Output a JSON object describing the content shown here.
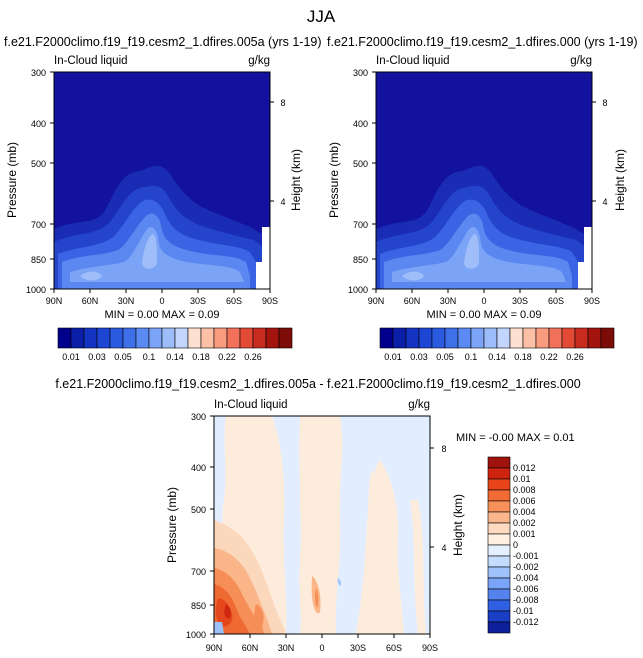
{
  "page_title": "JJA",
  "chart_data": [
    {
      "type": "contour",
      "title": "f.e21.F2000climo.f19_f19.cesm2_1.dfires.005a (yrs 1-19)",
      "left_label": "In-Cloud liquid",
      "right_label": "g/kg",
      "ylabel": "Pressure (mb)",
      "ylabel_right": "Height (km)",
      "x_ticks": [
        "90N",
        "60N",
        "30N",
        "0",
        "30S",
        "60S",
        "90S"
      ],
      "y_ticks": [
        "300",
        "400",
        "500",
        "700",
        "850",
        "1000"
      ],
      "height_ticks": [
        "8",
        "4"
      ],
      "stats": "MIN =  0.00  MAX =  0.09",
      "colorbar_labels": [
        "0.01",
        "0.03",
        "0.05",
        "0.1",
        "0.14",
        "0.18",
        "0.22",
        "0.26"
      ]
    },
    {
      "type": "contour",
      "title": "f.e21.F2000climo.f19_f19.cesm2_1.dfires.000 (yrs 1-19)",
      "left_label": "In-Cloud liquid",
      "right_label": "g/kg",
      "ylabel": "Pressure (mb)",
      "ylabel_right": "Height (km)",
      "x_ticks": [
        "90N",
        "60N",
        "30N",
        "0",
        "30S",
        "60S",
        "90S"
      ],
      "y_ticks": [
        "300",
        "400",
        "500",
        "700",
        "850",
        "1000"
      ],
      "height_ticks": [
        "8",
        "4"
      ],
      "stats": "MIN =  0.00  MAX =  0.09",
      "colorbar_labels": [
        "0.01",
        "0.03",
        "0.05",
        "0.1",
        "0.14",
        "0.18",
        "0.22",
        "0.26"
      ]
    },
    {
      "type": "contour",
      "title": "f.e21.F2000climo.f19_f19.cesm2_1.dfires.005a - f.e21.F2000climo.f19_f19.cesm2_1.dfires.000",
      "left_label": "In-Cloud liquid",
      "right_label": "g/kg",
      "ylabel": "Pressure (mb)",
      "ylabel_right": "Height (km)",
      "x_ticks": [
        "90N",
        "60N",
        "30N",
        "0",
        "30S",
        "60S",
        "90S"
      ],
      "y_ticks": [
        "300",
        "400",
        "500",
        "700",
        "850",
        "1000"
      ],
      "height_ticks": [
        "8",
        "4"
      ],
      "stats": "MIN = -0.00  MAX =  0.01",
      "colorbar_labels": [
        "0.012",
        "0.01",
        "0.008",
        "0.006",
        "0.004",
        "0.002",
        "0.001",
        "0",
        "-0.001",
        "-0.002",
        "-0.004",
        "-0.006",
        "-0.008",
        "-0.01",
        "-0.012"
      ]
    }
  ],
  "colors": {
    "seq_ramp": [
      "#00008c",
      "#0b1ea8",
      "#1533c2",
      "#1e46d4",
      "#2a5ae0",
      "#3e70ea",
      "#5b8af2",
      "#7ba3f7",
      "#9dbcfa",
      "#c2d5fc",
      "#fde0d0",
      "#fcc0a6",
      "#f99b7e",
      "#f2715a",
      "#e24a36",
      "#c72c1e",
      "#a3140f",
      "#7d0b08"
    ],
    "div_ramp": [
      "#a0120c",
      "#cf240f",
      "#e8441a",
      "#f26a34",
      "#f79159",
      "#fbb58a",
      "#fdd9bf",
      "#fff0e2",
      "#e4efff",
      "#c4dcfe",
      "#9fc2fc",
      "#7aa4f7",
      "#5483ee",
      "#2f5fe2",
      "#1a3ec6",
      "#0d1f9a"
    ],
    "deep": "#1212a0"
  }
}
